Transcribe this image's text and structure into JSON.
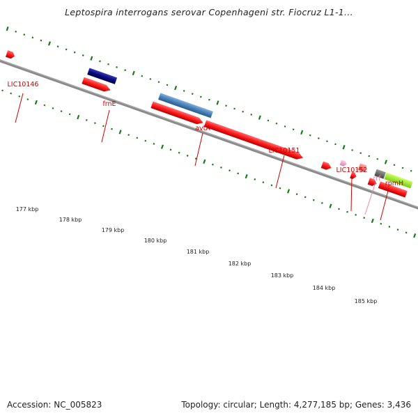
{
  "title": "Leptospira interrogans serovar Copenhageni str. Fiocruz L1-1...",
  "footer": {
    "accession": "Accession: NC_005823",
    "summary": "Topology: circular; Length: 4,277,185 bp; Genes: 3,436"
  },
  "colors": {
    "label_red": "#cc0000",
    "label_pink": "#e88aa8",
    "gene_red": "#ff1a1a",
    "gene_navy": "#0a0a80",
    "gene_steelblue": "#4a80b8",
    "gene_pink": "#f2a0c8",
    "gene_salmon": "#f07878",
    "gene_gray": "#666666",
    "gene_lime": "#99ee22",
    "tick_green": "#1a7a1a",
    "backbone": "#8a8a8a"
  },
  "scale_labels": [
    "177 kbp",
    "178 kbp",
    "179 kbp",
    "180 kbp",
    "181 kbp",
    "182 kbp",
    "183 kbp",
    "184 kbp",
    "185 kbp"
  ],
  "gene_labels": [
    {
      "text": "LIC10146",
      "color": "red"
    },
    {
      "text": "frnE",
      "color": "red"
    },
    {
      "text": "avtA",
      "color": "red"
    },
    {
      "text": "LIC10151",
      "color": "red"
    },
    {
      "text": "LIC10152",
      "color": "red"
    },
    {
      "text": "rrf",
      "color": "pink"
    },
    {
      "text": "rpmH",
      "color": "red"
    }
  ]
}
